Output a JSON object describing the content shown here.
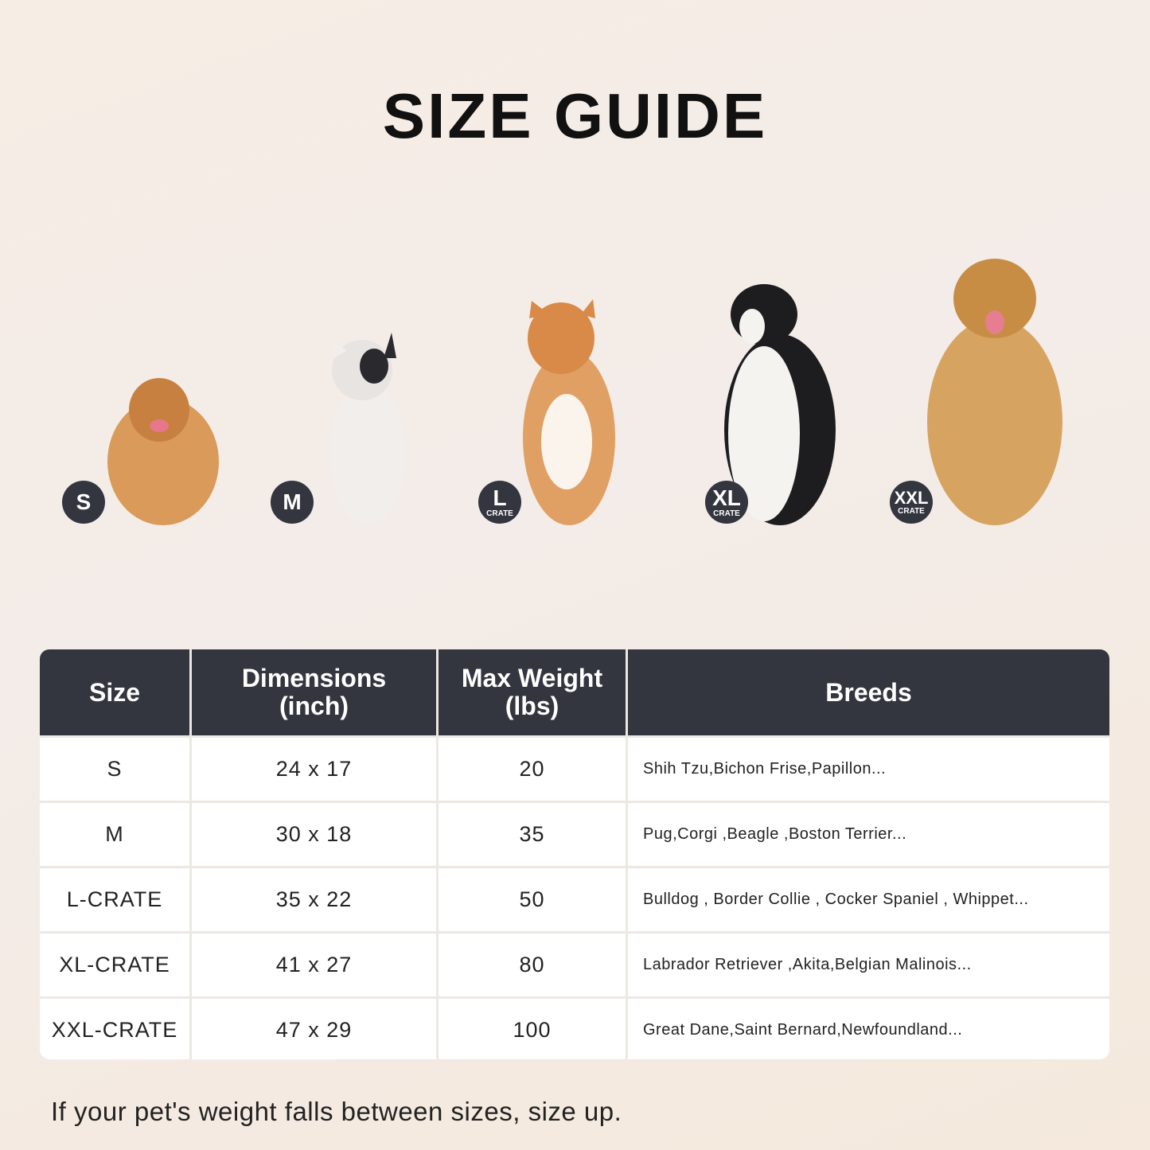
{
  "title": "SIZE GUIDE",
  "badges": [
    {
      "size": "S",
      "sub": ""
    },
    {
      "size": "M",
      "sub": ""
    },
    {
      "size": "L",
      "sub": "CRATE"
    },
    {
      "size": "XL",
      "sub": "CRATE"
    },
    {
      "size": "XXL",
      "sub": "CRATE"
    }
  ],
  "table": {
    "headers": [
      "Size",
      "Dimensions\n(inch)",
      "Max Weight\n(lbs)",
      "Breeds"
    ],
    "rows": [
      [
        "S",
        "24 x 17",
        "20",
        "Shih Tzu,Bichon Frise,Papillon..."
      ],
      [
        "M",
        "30 x 18",
        "35",
        "Pug,Corgi ,Beagle ,Boston Terrier..."
      ],
      [
        "L-CRATE",
        "35 x 22",
        "50",
        "Bulldog , Border Collie , Cocker Spaniel , Whippet..."
      ],
      [
        "XL-CRATE",
        "41 x 27",
        "80",
        "Labrador Retriever ,Akita,Belgian Malinois..."
      ],
      [
        "XXL-CRATE",
        "47 x 29",
        "100",
        "Great Dane,Saint Bernard,Newfoundland..."
      ]
    ]
  },
  "note": "If your pet's weight falls between sizes, size up.",
  "colors": {
    "header_bg": "#33353f",
    "badge_bg": "#33353f"
  }
}
